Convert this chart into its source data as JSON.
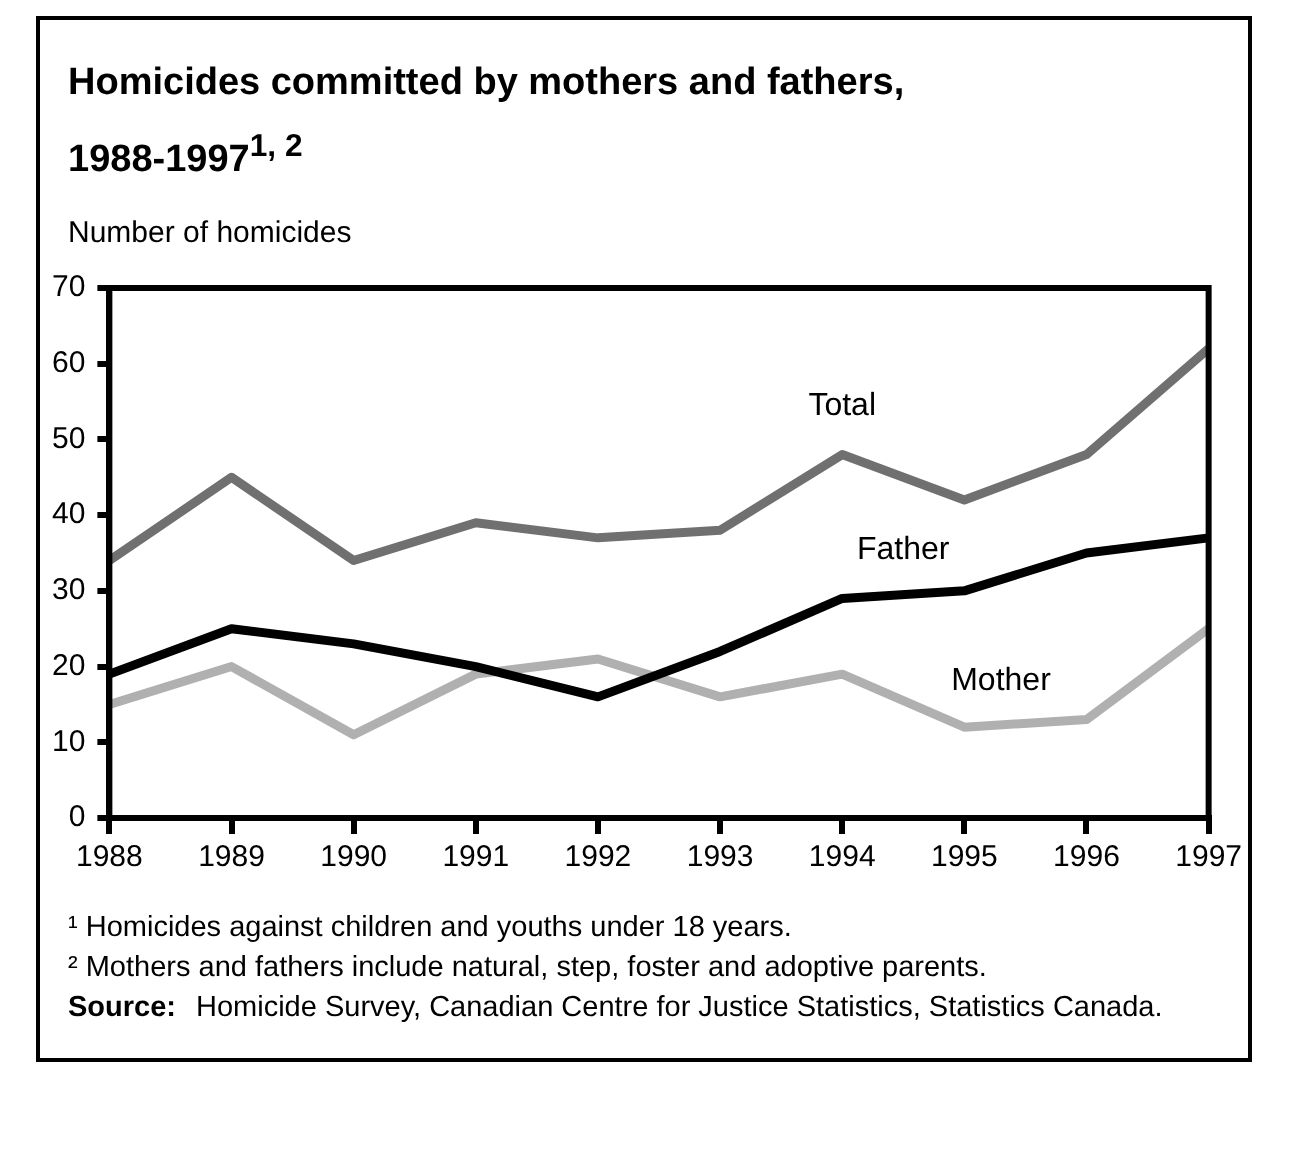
{
  "chart_data": {
    "type": "line",
    "title": "Homicides committed by mothers and fathers, 1988-1997$^{1, 2}$",
    "ylabel": "Number of homicides",
    "categories": [
      "1988",
      "1989",
      "1990",
      "1991",
      "1992",
      "1993",
      "1994",
      "1995",
      "1996",
      "1997"
    ],
    "series": [
      {
        "name": "Total",
        "color": "#707070",
        "values": [
          34,
          45,
          34,
          39,
          37,
          38,
          48,
          42,
          48,
          62
        ]
      },
      {
        "name": "Father",
        "color": "#000000",
        "values": [
          19,
          25,
          23,
          20,
          16,
          22,
          29,
          30,
          35,
          37
        ]
      },
      {
        "name": "Mother",
        "color": "#b0b0b0",
        "values": [
          15,
          20,
          11,
          19,
          21,
          16,
          19,
          12,
          13,
          25
        ]
      }
    ],
    "ylim": [
      0,
      70
    ],
    "yticks": [
      0,
      10,
      20,
      30,
      40,
      50,
      60,
      70
    ],
    "grid": false,
    "legend": false,
    "marker": "none",
    "line_style": "solid",
    "annotations": [
      "¹ Homicides against children and youths under 18 years.",
      "² Mothers and fathers include natural, step, foster and adoptive parents.",
      "Source: Homicide Survey, Canadian Centre for Justice Statistics, Statistics Canada."
    ]
  }
}
